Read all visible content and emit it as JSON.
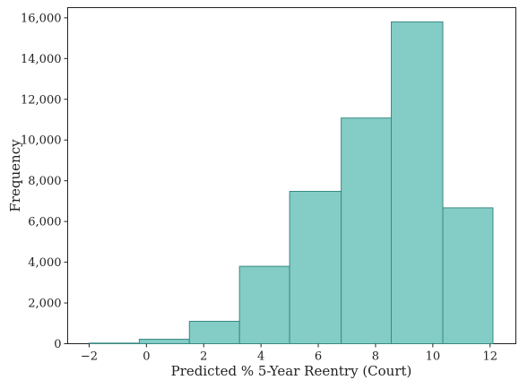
{
  "chart_data": {
    "type": "bar",
    "title": "",
    "xlabel": "Predicted % 5-Year Reentry (Court)",
    "ylabel": "Frequency",
    "xlim": [
      -2.75,
      12.9
    ],
    "ylim": [
      0,
      16500
    ],
    "x_ticks": [
      -2,
      0,
      2,
      4,
      6,
      8,
      10,
      12
    ],
    "x_tick_labels": [
      "−2",
      "0",
      "2",
      "4",
      "6",
      "8",
      "10",
      "12"
    ],
    "y_ticks": [
      0,
      2000,
      4000,
      6000,
      8000,
      10000,
      12000,
      14000,
      16000
    ],
    "y_tick_labels": [
      "0",
      "2,000",
      "4,000",
      "6,000",
      "8,000",
      "10,000",
      "12,000",
      "14,000",
      "16,000"
    ],
    "bins": [
      [
        -2.0,
        -0.25,
        30
      ],
      [
        -0.25,
        1.5,
        220
      ],
      [
        1.5,
        3.25,
        1100
      ],
      [
        3.25,
        5.0,
        3800
      ],
      [
        5.0,
        6.8,
        7480
      ],
      [
        6.8,
        8.55,
        11080
      ],
      [
        8.55,
        10.35,
        15800
      ],
      [
        10.35,
        12.1,
        6670
      ]
    ],
    "bar_color": "#84ccc6",
    "edge_color": "#3a8a84",
    "grid": false
  }
}
